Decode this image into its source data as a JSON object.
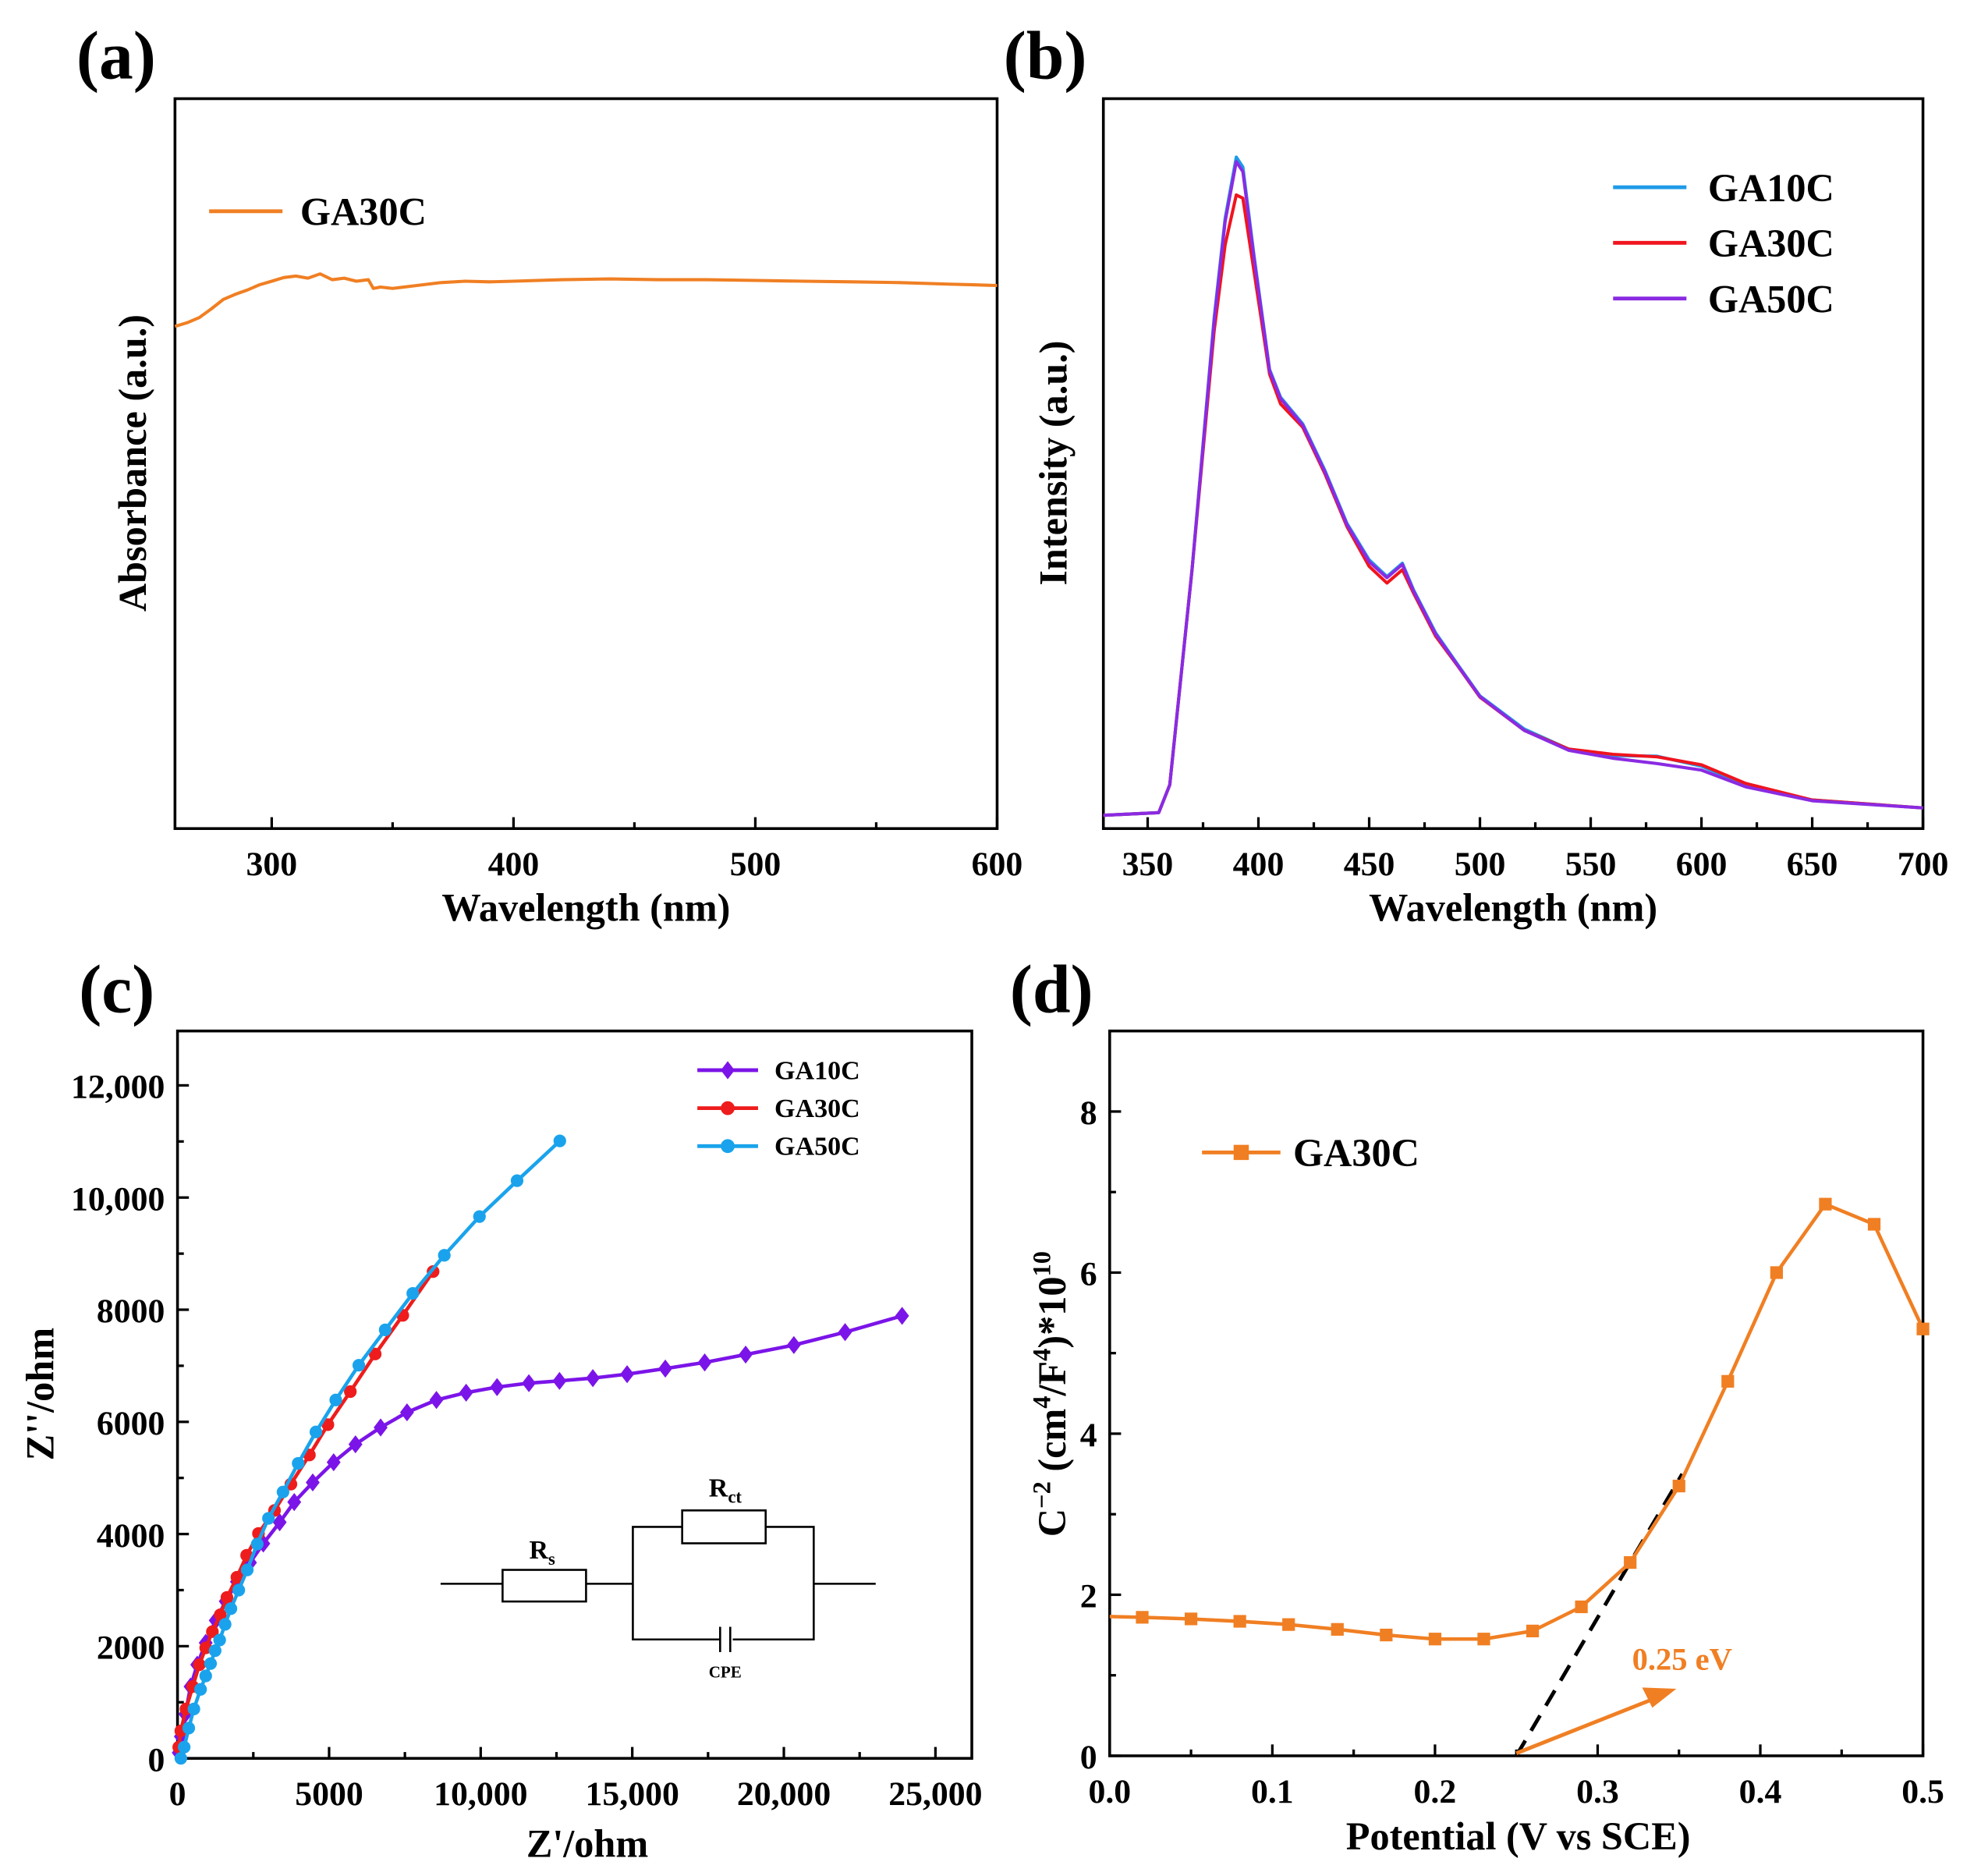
{
  "chart_data": [
    {
      "id": "a",
      "panel_label": "(a)",
      "type": "line",
      "title": "",
      "xlabel": "Wavelength (nm)",
      "ylabel": "Absorbance (a.u.)",
      "xlim": [
        260,
        600
      ],
      "ylim": [
        0,
        1
      ],
      "xticks": [
        300,
        400,
        500,
        600
      ],
      "xminor": [
        350,
        450,
        550
      ],
      "yticks": [],
      "legend_position": "top-left",
      "series": [
        {
          "name": "GA30C",
          "color": "#F07F23",
          "marker": "none",
          "x": [
            260,
            265,
            270,
            275,
            280,
            285,
            290,
            295,
            300,
            305,
            310,
            315,
            320,
            325,
            330,
            335,
            340,
            342,
            345,
            350,
            360,
            370,
            380,
            390,
            400,
            420,
            440,
            460,
            480,
            500,
            520,
            540,
            560,
            580,
            590,
            600
          ],
          "y": [
            0.688,
            0.693,
            0.7,
            0.712,
            0.725,
            0.732,
            0.738,
            0.745,
            0.75,
            0.755,
            0.757,
            0.754,
            0.76,
            0.752,
            0.754,
            0.75,
            0.752,
            0.74,
            0.742,
            0.74,
            0.744,
            0.748,
            0.75,
            0.749,
            0.75,
            0.752,
            0.753,
            0.752,
            0.752,
            0.751,
            0.75,
            0.749,
            0.748,
            0.746,
            0.745,
            0.744
          ]
        }
      ]
    },
    {
      "id": "b",
      "panel_label": "(b)",
      "type": "line",
      "title": "",
      "xlabel": "Wavelength (nm)",
      "ylabel": "Intensity (a.u.)",
      "xlim": [
        330,
        700
      ],
      "ylim": [
        -0.02,
        1.08
      ],
      "xticks": [
        350,
        400,
        450,
        500,
        550,
        600,
        650,
        700
      ],
      "xminor": [
        375,
        425,
        475,
        525,
        575,
        625,
        675
      ],
      "yticks": [],
      "legend_position": "top-right",
      "series": [
        {
          "name": "GA10C",
          "color": "#1E9BE8",
          "marker": "none",
          "x": [
            330,
            355,
            360,
            370,
            380,
            385,
            390,
            393,
            398,
            405,
            410,
            420,
            430,
            440,
            450,
            458,
            465,
            470,
            480,
            490,
            500,
            520,
            540,
            560,
            580,
            600,
            620,
            650,
            700
          ],
          "y": [
            0,
            0.004,
            0.046,
            0.37,
            0.75,
            0.9,
            0.992,
            0.977,
            0.844,
            0.672,
            0.63,
            0.59,
            0.52,
            0.44,
            0.385,
            0.36,
            0.38,
            0.34,
            0.275,
            0.227,
            0.18,
            0.13,
            0.1,
            0.09,
            0.089,
            0.074,
            0.046,
            0.023,
            0.011
          ]
        },
        {
          "name": "GA30C",
          "color": "#F0141E",
          "marker": "none",
          "x": [
            330,
            355,
            360,
            370,
            380,
            385,
            390,
            393,
            398,
            405,
            410,
            420,
            430,
            440,
            450,
            458,
            465,
            470,
            480,
            490,
            500,
            520,
            540,
            560,
            580,
            600,
            620,
            650,
            700
          ],
          "y": [
            0,
            0.004,
            0.046,
            0.37,
            0.73,
            0.86,
            0.935,
            0.93,
            0.82,
            0.665,
            0.62,
            0.585,
            0.515,
            0.435,
            0.375,
            0.35,
            0.37,
            0.335,
            0.27,
            0.225,
            0.178,
            0.128,
            0.1,
            0.092,
            0.088,
            0.076,
            0.048,
            0.023,
            0.011
          ]
        },
        {
          "name": "GA50C",
          "color": "#8A2BE2",
          "marker": "none",
          "x": [
            330,
            355,
            360,
            370,
            380,
            385,
            390,
            393,
            398,
            405,
            410,
            420,
            430,
            440,
            450,
            458,
            465,
            470,
            480,
            490,
            500,
            520,
            540,
            560,
            580,
            600,
            620,
            650,
            700
          ],
          "y": [
            0,
            0.004,
            0.046,
            0.37,
            0.745,
            0.895,
            0.985,
            0.97,
            0.84,
            0.67,
            0.628,
            0.588,
            0.518,
            0.438,
            0.382,
            0.358,
            0.378,
            0.338,
            0.273,
            0.226,
            0.179,
            0.128,
            0.098,
            0.086,
            0.078,
            0.068,
            0.043,
            0.022,
            0.011
          ]
        }
      ]
    },
    {
      "id": "c",
      "panel_label": "(c)",
      "type": "scatter",
      "title": "",
      "xlabel": "Z'/ohm",
      "ylabel": "Z''/ohm",
      "xlim": [
        0,
        26200
      ],
      "ylim": [
        0,
        12970
      ],
      "xticks": [
        0,
        5000,
        10000,
        15000,
        20000,
        25000
      ],
      "xticklabels": [
        "0",
        "5000",
        "10,000",
        "15,000",
        "20,000",
        "25,000"
      ],
      "xminor": [
        2500,
        7500,
        12500,
        17500,
        22500
      ],
      "yticks": [
        0,
        2000,
        4000,
        6000,
        8000,
        10000,
        12000
      ],
      "yticklabels": [
        "0",
        "2000",
        "4000",
        "6000",
        "8000",
        "10,000",
        "12,000"
      ],
      "yminor": [
        1000,
        3000,
        5000,
        7000,
        9000,
        11000
      ],
      "legend_position": "top-right",
      "inset": {
        "rs_label": "R",
        "rs_sub": "s",
        "rct_label": "R",
        "rct_sub": "ct",
        "cpe_label": "CPE"
      },
      "series": [
        {
          "name": "GA10C",
          "color": "#7B14E8",
          "marker": "diamond",
          "x": [
            40,
            110,
            260,
            430,
            650,
            930,
            1260,
            1590,
            1960,
            2390,
            2830,
            3370,
            3850,
            4460,
            5150,
            5870,
            6700,
            7570,
            8540,
            9520,
            10540,
            11590,
            12600,
            13700,
            14830,
            16090,
            17390,
            18740,
            20330,
            22020,
            23900
          ],
          "y": [
            100,
            390,
            790,
            1280,
            1670,
            2060,
            2460,
            2800,
            3150,
            3490,
            3830,
            4210,
            4570,
            4920,
            5280,
            5600,
            5900,
            6170,
            6390,
            6520,
            6620,
            6690,
            6730,
            6780,
            6850,
            6950,
            7060,
            7200,
            7370,
            7600,
            7890
          ]
        },
        {
          "name": "GA30C",
          "color": "#EE1C1C",
          "marker": "circle",
          "x": [
            40,
            110,
            280,
            500,
            720,
            930,
            1150,
            1410,
            1630,
            1960,
            2280,
            2670,
            3200,
            3740,
            4350,
            4960,
            5700,
            6520,
            7430,
            8430
          ],
          "y": [
            200,
            490,
            880,
            1280,
            1670,
            1970,
            2260,
            2560,
            2870,
            3230,
            3620,
            4010,
            4420,
            4890,
            5410,
            5950,
            6540,
            7210,
            7900,
            8680
          ]
        },
        {
          "name": "GA50C",
          "color": "#1AA3EC",
          "marker": "circle",
          "x": [
            110,
            220,
            370,
            540,
            760,
            930,
            1090,
            1240,
            1390,
            1570,
            1760,
            2020,
            2300,
            2630,
            3000,
            3480,
            3980,
            4565,
            5220,
            5980,
            6850,
            7760,
            8800,
            9960,
            11200,
            12610
          ],
          "y": [
            0,
            200,
            540,
            880,
            1230,
            1470,
            1690,
            1920,
            2110,
            2390,
            2670,
            3000,
            3360,
            3820,
            4280,
            4750,
            5260,
            5820,
            6390,
            7010,
            7640,
            8290,
            8970,
            9660,
            10300,
            11010
          ]
        }
      ]
    },
    {
      "id": "d",
      "panel_label": "(d)",
      "type": "line",
      "title": "",
      "xlabel": "Potential (V vs SCE)",
      "ylabel_parts": [
        "C",
        "−2",
        " (cm",
        "4",
        "/F",
        "4",
        ")*10",
        "10"
      ],
      "xlim": [
        0,
        0.5
      ],
      "ylim": [
        0,
        9
      ],
      "xticks": [
        0,
        0.1,
        0.2,
        0.3,
        0.4,
        0.5
      ],
      "xticklabels": [
        "0.0",
        "0.1",
        "0.2",
        "0.3",
        "0.4",
        "0.5"
      ],
      "xminor": [
        0.05,
        0.15,
        0.25,
        0.35,
        0.45
      ],
      "yticks": [
        0,
        2,
        4,
        6,
        8
      ],
      "yticklabels": [
        "0",
        "2",
        "4",
        "6",
        "8"
      ],
      "yminor": [
        1,
        3,
        5,
        7
      ],
      "legend_position": "top-left",
      "annotation": {
        "text": "0.25 eV",
        "color": "#F07F23",
        "intercept_x": 0.25,
        "fit_to": [
          0.352,
          3.5
        ]
      },
      "series": [
        {
          "name": "GA30C",
          "color": "#F07F23",
          "marker": "square",
          "x": [
            0,
            0.02,
            0.05,
            0.08,
            0.11,
            0.14,
            0.17,
            0.2,
            0.23,
            0.26,
            0.29,
            0.32,
            0.35,
            0.38,
            0.41,
            0.44,
            0.47,
            0.5
          ],
          "y": [
            1.73,
            1.72,
            1.7,
            1.67,
            1.63,
            1.57,
            1.5,
            1.45,
            1.45,
            1.55,
            1.85,
            2.4,
            3.35,
            4.65,
            6.0,
            6.85,
            6.6,
            5.3
          ]
        }
      ]
    }
  ]
}
